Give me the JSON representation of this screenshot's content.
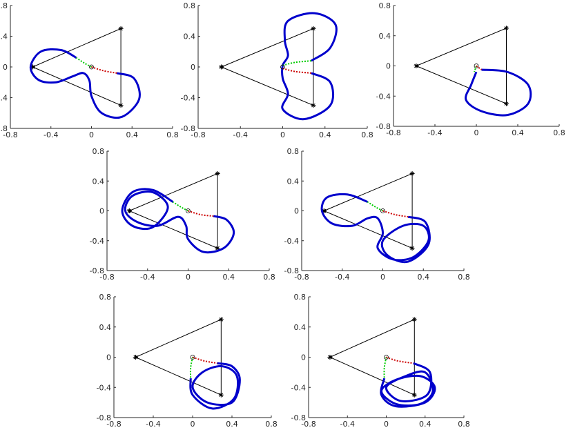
{
  "chart_data": [
    {
      "type": "line",
      "xlim": [
        -0.8,
        0.8
      ],
      "ylim": [
        -0.8,
        0.8
      ],
      "xticks": [
        -0.8,
        -0.4,
        0,
        0.4,
        0.8
      ],
      "yticks": [
        -0.8,
        -0.4,
        0,
        0.4,
        0.8
      ],
      "series": [
        {
          "color": "#000000",
          "marker": "star",
          "linestyle": "solid",
          "x": [
            -0.58,
            0.29,
            0.29,
            -0.58
          ],
          "values": [
            0,
            0.5,
            -0.5,
            0
          ]
        },
        {
          "color": "#0000cc",
          "marker": "none",
          "linestyle": "thick",
          "x": [
            -0.15,
            -0.3,
            -0.5,
            -0.6,
            -0.52,
            -0.35,
            -0.18,
            -0.08,
            -0.02,
            0.0,
            0.1,
            0.3,
            0.47,
            0.42,
            0.25
          ],
          "values": [
            0.12,
            0.22,
            0.2,
            0.0,
            -0.17,
            -0.2,
            -0.12,
            -0.08,
            -0.18,
            -0.38,
            -0.6,
            -0.65,
            -0.42,
            -0.15,
            -0.08
          ]
        },
        {
          "color": "#00cc00",
          "marker": "none",
          "linestyle": "dotted",
          "x": [
            0,
            -0.07,
            -0.15
          ],
          "values": [
            0,
            0.05,
            0.12
          ]
        },
        {
          "color": "#cc0000",
          "marker": "none",
          "linestyle": "dotted",
          "x": [
            0,
            0.12,
            0.25
          ],
          "values": [
            0,
            -0.05,
            -0.08
          ]
        },
        {
          "color": "#000000",
          "marker": "circle",
          "linestyle": "none",
          "x": [
            0
          ],
          "values": [
            0
          ]
        }
      ]
    },
    {
      "type": "line",
      "xlim": [
        -0.8,
        0.8
      ],
      "ylim": [
        -0.8,
        0.8
      ],
      "xticks": [
        -0.8,
        -0.4,
        0,
        0.4,
        0.8
      ],
      "yticks": [
        -0.8,
        -0.4,
        0,
        0.4,
        0.8
      ],
      "series": [
        {
          "color": "#000000",
          "marker": "star",
          "linestyle": "solid",
          "x": [
            -0.58,
            0.29,
            0.29,
            -0.58
          ],
          "values": [
            0,
            0.5,
            -0.5,
            0
          ]
        },
        {
          "color": "#0000cc",
          "marker": "none",
          "linestyle": "thick",
          "x": [
            0.27,
            0.45,
            0.5,
            0.3,
            0.05,
            0.02,
            0.05,
            0.0,
            0.0,
            0.05,
            0.0,
            0.2,
            0.45,
            0.45,
            0.27
          ],
          "values": [
            0.08,
            0.25,
            0.55,
            0.7,
            0.6,
            0.35,
            0.15,
            0.02,
            -0.15,
            -0.35,
            -0.55,
            -0.68,
            -0.5,
            -0.2,
            -0.08
          ]
        },
        {
          "color": "#00cc00",
          "marker": "none",
          "linestyle": "dotted",
          "x": [
            0,
            0.12,
            0.27
          ],
          "values": [
            0.02,
            0.06,
            0.08
          ]
        },
        {
          "color": "#cc0000",
          "marker": "none",
          "linestyle": "dotted",
          "x": [
            0,
            0.12,
            0.27
          ],
          "values": [
            -0.02,
            -0.06,
            -0.08
          ]
        },
        {
          "color": "#000000",
          "marker": "circle",
          "linestyle": "none",
          "x": [
            0
          ],
          "values": [
            0
          ]
        }
      ]
    },
    {
      "type": "line",
      "xlim": [
        -0.8,
        0.8
      ],
      "ylim": [
        -0.8,
        0.8
      ],
      "xticks": [
        -0.8,
        -0.4,
        0,
        0.4,
        0.8
      ],
      "yticks": [
        -0.8,
        -0.4,
        0,
        0.4,
        0.8
      ],
      "series": [
        {
          "color": "#000000",
          "marker": "star",
          "linestyle": "solid",
          "x": [
            -0.58,
            0.29,
            0.29,
            -0.58
          ],
          "values": [
            0,
            0.5,
            -0.5,
            0
          ]
        },
        {
          "color": "#0000cc",
          "marker": "none",
          "linestyle": "thick",
          "x": [
            0.05,
            0.3,
            0.5,
            0.5,
            0.3,
            0.05,
            -0.1,
            -0.05,
            0.0
          ],
          "values": [
            -0.05,
            -0.08,
            -0.25,
            -0.5,
            -0.65,
            -0.6,
            -0.45,
            -0.25,
            -0.08
          ]
        },
        {
          "color": "#00cc00",
          "marker": "none",
          "linestyle": "dotted",
          "x": [
            0,
            -0.02
          ],
          "values": [
            0,
            -0.08
          ]
        },
        {
          "color": "#cc0000",
          "marker": "none",
          "linestyle": "dotted",
          "x": [
            0,
            0.05
          ],
          "values": [
            0,
            -0.05
          ]
        },
        {
          "color": "#000000",
          "marker": "circle",
          "linestyle": "none",
          "x": [
            0
          ],
          "values": [
            0
          ]
        }
      ]
    },
    {
      "type": "line",
      "xlim": [
        -0.8,
        0.8
      ],
      "ylim": [
        -0.8,
        0.8
      ],
      "xticks": [
        -0.8,
        -0.4,
        0,
        0.4,
        0.8
      ],
      "yticks": [
        -0.8,
        -0.4,
        0,
        0.4,
        0.8
      ],
      "series": [
        {
          "color": "#000000",
          "marker": "star",
          "linestyle": "solid",
          "x": [
            -0.58,
            0.29,
            0.29,
            -0.58
          ],
          "values": [
            0,
            0.5,
            -0.5,
            0
          ]
        },
        {
          "color": "#0000cc",
          "marker": "none",
          "linestyle": "thick",
          "x": [
            -0.15,
            -0.35,
            -0.55,
            -0.65,
            -0.55,
            -0.35,
            -0.2,
            -0.35,
            -0.55,
            -0.62,
            -0.5,
            -0.3,
            -0.1,
            -0.02,
            0.0,
            0.15,
            0.35,
            0.45,
            0.38,
            0.25
          ],
          "values": [
            0.12,
            0.28,
            0.25,
            0.0,
            -0.2,
            -0.22,
            0.05,
            0.25,
            0.2,
            0.0,
            -0.15,
            -0.2,
            -0.08,
            -0.2,
            -0.38,
            -0.55,
            -0.5,
            -0.3,
            -0.12,
            -0.07
          ]
        },
        {
          "color": "#00cc00",
          "marker": "none",
          "linestyle": "dotted",
          "x": [
            0,
            -0.07,
            -0.15
          ],
          "values": [
            0,
            0.05,
            0.12
          ]
        },
        {
          "color": "#cc0000",
          "marker": "none",
          "linestyle": "dotted",
          "x": [
            0,
            0.12,
            0.25
          ],
          "values": [
            0,
            -0.05,
            -0.07
          ]
        },
        {
          "color": "#000000",
          "marker": "circle",
          "linestyle": "none",
          "x": [
            0
          ],
          "values": [
            0
          ]
        }
      ]
    },
    {
      "type": "line",
      "xlim": [
        -0.8,
        0.8
      ],
      "ylim": [
        -0.8,
        0.8
      ],
      "xticks": [
        -0.8,
        -0.4,
        0,
        0.4,
        0.8
      ],
      "yticks": [
        -0.8,
        -0.4,
        0,
        0.4,
        0.8
      ],
      "series": [
        {
          "color": "#000000",
          "marker": "star",
          "linestyle": "solid",
          "x": [
            -0.58,
            0.29,
            0.29,
            -0.58
          ],
          "values": [
            0,
            0.5,
            -0.5,
            0
          ]
        },
        {
          "color": "#0000cc",
          "marker": "none",
          "linestyle": "thick",
          "x": [
            -0.15,
            -0.35,
            -0.55,
            -0.6,
            -0.5,
            -0.3,
            -0.15,
            -0.05,
            0.0,
            -0.05,
            0.1,
            0.3,
            0.45,
            0.4,
            0.2,
            0.0,
            0.05,
            0.25,
            0.45,
            0.42,
            0.25
          ],
          "values": [
            0.12,
            0.22,
            0.18,
            0.0,
            -0.17,
            -0.2,
            -0.1,
            -0.1,
            -0.3,
            -0.5,
            -0.65,
            -0.62,
            -0.4,
            -0.2,
            -0.2,
            -0.4,
            -0.6,
            -0.68,
            -0.45,
            -0.15,
            -0.08
          ]
        },
        {
          "color": "#00cc00",
          "marker": "none",
          "linestyle": "dotted",
          "x": [
            0,
            -0.07,
            -0.15
          ],
          "values": [
            0,
            0.05,
            0.12
          ]
        },
        {
          "color": "#cc0000",
          "marker": "none",
          "linestyle": "dotted",
          "x": [
            0,
            0.12,
            0.25
          ],
          "values": [
            0,
            -0.05,
            -0.08
          ]
        },
        {
          "color": "#000000",
          "marker": "circle",
          "linestyle": "none",
          "x": [
            0
          ],
          "values": [
            0
          ]
        }
      ]
    },
    {
      "type": "line",
      "xlim": [
        -0.8,
        0.8
      ],
      "ylim": [
        -0.8,
        0.8
      ],
      "xticks": [
        -0.8,
        -0.4,
        0,
        0.4,
        0.8
      ],
      "yticks": [
        -0.8,
        -0.4,
        0,
        0.4,
        0.8
      ],
      "series": [
        {
          "color": "#000000",
          "marker": "star",
          "linestyle": "solid",
          "x": [
            -0.58,
            0.29,
            0.29,
            -0.58
          ],
          "values": [
            0,
            0.5,
            -0.5,
            0
          ]
        },
        {
          "color": "#0000cc",
          "marker": "none",
          "linestyle": "thick",
          "x": [
            -0.02,
            0.0,
            0.2,
            0.42,
            0.45,
            0.3,
            0.1,
            0.0,
            0.15,
            0.4,
            0.48,
            0.4,
            0.25
          ],
          "values": [
            -0.28,
            -0.5,
            -0.68,
            -0.55,
            -0.25,
            -0.12,
            -0.2,
            -0.4,
            -0.6,
            -0.6,
            -0.3,
            -0.12,
            -0.08
          ]
        },
        {
          "color": "#00cc00",
          "marker": "none",
          "linestyle": "dotted",
          "x": [
            0,
            -0.02,
            -0.02
          ],
          "values": [
            0,
            -0.14,
            -0.28
          ]
        },
        {
          "color": "#cc0000",
          "marker": "none",
          "linestyle": "dotted",
          "x": [
            0,
            0.12,
            0.25
          ],
          "values": [
            0,
            -0.05,
            -0.08
          ]
        },
        {
          "color": "#000000",
          "marker": "circle",
          "linestyle": "none",
          "x": [
            0
          ],
          "values": [
            0
          ]
        }
      ]
    },
    {
      "type": "line",
      "xlim": [
        -0.8,
        0.8
      ],
      "ylim": [
        -0.8,
        0.8
      ],
      "xticks": [
        -0.8,
        -0.4,
        0,
        0.4,
        0.8
      ],
      "yticks": [
        -0.8,
        -0.4,
        0,
        0.4,
        0.8
      ],
      "series": [
        {
          "color": "#000000",
          "marker": "star",
          "linestyle": "solid",
          "x": [
            -0.58,
            0.29,
            0.29,
            -0.58
          ],
          "values": [
            0,
            0.5,
            -0.5,
            0
          ]
        },
        {
          "color": "#0000cc",
          "marker": "none",
          "linestyle": "thick",
          "x": [
            -0.02,
            -0.05,
            0.1,
            0.4,
            0.5,
            0.35,
            0.1,
            -0.05,
            0.1,
            0.35,
            0.48,
            0.4,
            0.2,
            0.0,
            0.15,
            0.42,
            0.45,
            0.28
          ],
          "values": [
            -0.28,
            -0.5,
            -0.65,
            -0.6,
            -0.4,
            -0.25,
            -0.3,
            -0.45,
            -0.62,
            -0.62,
            -0.45,
            -0.2,
            -0.25,
            -0.4,
            -0.58,
            -0.5,
            -0.2,
            -0.08
          ]
        },
        {
          "color": "#00cc00",
          "marker": "none",
          "linestyle": "dotted",
          "x": [
            0,
            -0.02,
            -0.02
          ],
          "values": [
            0,
            -0.14,
            -0.28
          ]
        },
        {
          "color": "#cc0000",
          "marker": "none",
          "linestyle": "dotted",
          "x": [
            0,
            0.12,
            0.28
          ],
          "values": [
            0,
            -0.05,
            -0.08
          ]
        },
        {
          "color": "#000000",
          "marker": "circle",
          "linestyle": "none",
          "x": [
            0
          ],
          "values": [
            0
          ]
        }
      ]
    }
  ]
}
